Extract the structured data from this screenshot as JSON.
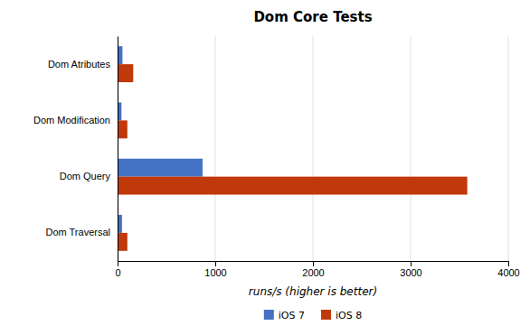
{
  "chart_data": {
    "type": "bar",
    "orientation": "horizontal",
    "title": "Dom Core Tests",
    "xlabel": "runs/s (higher is better)",
    "categories": [
      "Dom Atributes",
      "Dom Modification",
      "Dom Query",
      "Dom Traversal"
    ],
    "series": [
      {
        "name": "iOS 7",
        "color": "#4472C4",
        "values": [
          50,
          40,
          870,
          45
        ]
      },
      {
        "name": "iOS 8",
        "color": "#C0390B",
        "values": [
          160,
          100,
          3580,
          100
        ]
      }
    ],
    "xlim": [
      0,
      4000
    ],
    "xticks": [
      0,
      1000,
      2000,
      3000,
      4000
    ],
    "grid": true,
    "legend": "bottom"
  }
}
